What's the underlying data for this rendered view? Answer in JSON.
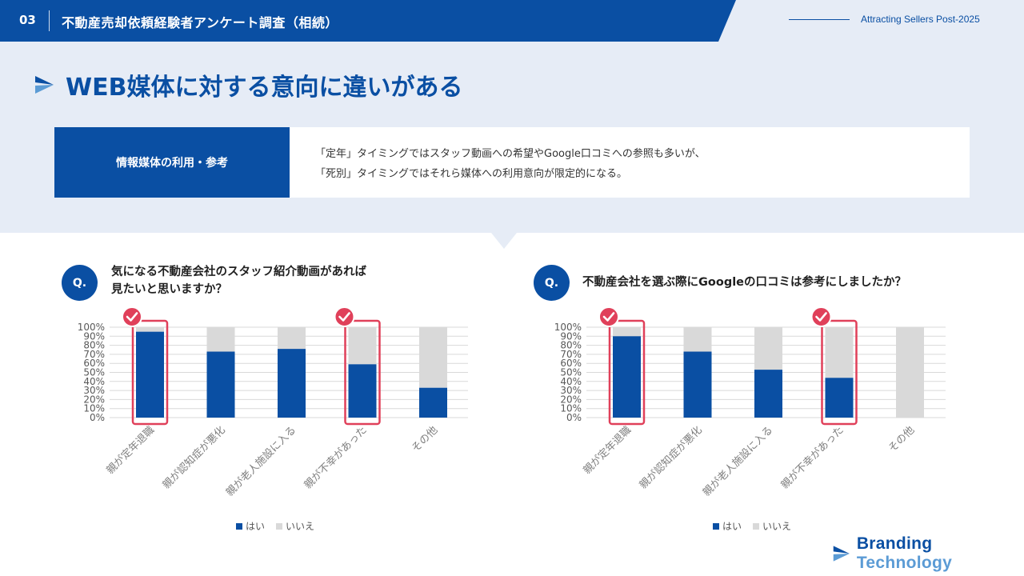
{
  "header": {
    "section_number": "03",
    "title": "不動産売却依頼経験者アンケート調査（相続）",
    "tagline": "Attracting Sellers Post-2025"
  },
  "slide_title": "WEB媒体に対する意向に違いがある",
  "info": {
    "label": "情報媒体の利用・参考",
    "line1": "「定年」タイミングではスタッフ動画への希望やGoogle口コミへの参照も多いが、",
    "line2": "「死別」タイミングではそれら媒体への利用意向が限定的になる。"
  },
  "brand": {
    "part1": "Branding",
    "part2": " Technology"
  },
  "colors": {
    "primary": "#0a4fa3",
    "no": "#d9d9d9",
    "highlight": "#e0405a",
    "bg": "#e6ecf6"
  },
  "legend": {
    "yes": "はい",
    "no": "いいえ"
  },
  "chart_data": [
    {
      "type": "bar",
      "stacked": true,
      "question_badge": "Q.",
      "title_line1": "気になる不動産会社のスタッフ紹介動画があれば",
      "title_line2": "見たいと思いますか？",
      "categories": [
        "親が定年退職",
        "親が認知症が悪化",
        "親が老人施設に入る",
        "親が不幸があった",
        "その他"
      ],
      "series": [
        {
          "name": "はい",
          "values": [
            95,
            73,
            76,
            59,
            33
          ],
          "color": "#0a4fa3"
        },
        {
          "name": "いいえ",
          "values": [
            5,
            27,
            24,
            41,
            67
          ],
          "color": "#d9d9d9"
        }
      ],
      "y_ticks": [
        "0%",
        "10%",
        "20%",
        "30%",
        "40%",
        "50%",
        "60%",
        "70%",
        "80%",
        "90%",
        "100%"
      ],
      "ylim": [
        0,
        100
      ],
      "highlighted": [
        "親が定年退職",
        "親が不幸があった"
      ],
      "legend_position": "bottom"
    },
    {
      "type": "bar",
      "stacked": true,
      "question_badge": "Q.",
      "title_line1": "不動産会社を選ぶ際にGoogleの口コミは参考にしましたか？",
      "title_line2": "",
      "categories": [
        "親が定年退職",
        "親が認知症が悪化",
        "親が老人施設に入る",
        "親が不幸があった",
        "その他"
      ],
      "series": [
        {
          "name": "はい",
          "values": [
            90,
            73,
            53,
            44,
            0
          ],
          "color": "#0a4fa3"
        },
        {
          "name": "いいえ",
          "values": [
            10,
            27,
            47,
            56,
            100
          ],
          "color": "#d9d9d9"
        }
      ],
      "y_ticks": [
        "0%",
        "10%",
        "20%",
        "30%",
        "40%",
        "50%",
        "60%",
        "70%",
        "80%",
        "90%",
        "100%"
      ],
      "ylim": [
        0,
        100
      ],
      "highlighted": [
        "親が定年退職",
        "親が不幸があった"
      ],
      "legend_position": "bottom"
    }
  ]
}
